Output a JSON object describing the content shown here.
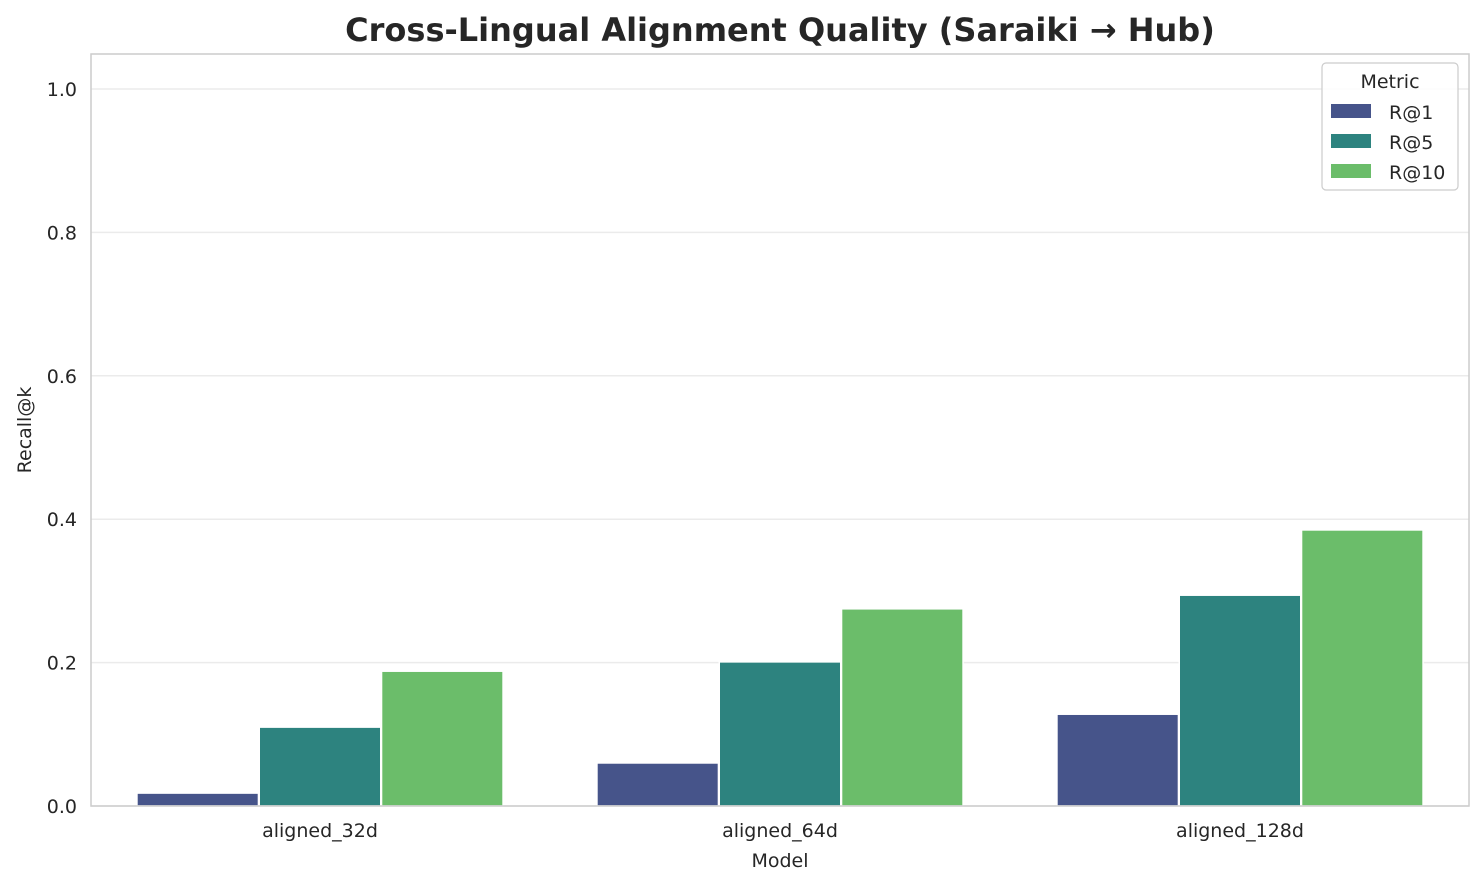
{
  "chart_data": {
    "type": "bar",
    "title": "Cross-Lingual Alignment Quality (Saraiki → Hub)",
    "xlabel": "Model",
    "ylabel": "Recall@k",
    "categories": [
      "aligned_32d",
      "aligned_64d",
      "aligned_128d"
    ],
    "series": [
      {
        "name": "R@1",
        "color": "#46548a",
        "values": [
          0.018,
          0.06,
          0.128
        ]
      },
      {
        "name": "R@5",
        "color": "#2d837f",
        "values": [
          0.11,
          0.201,
          0.294
        ]
      },
      {
        "name": "R@10",
        "color": "#6bbd6a",
        "values": [
          0.188,
          0.275,
          0.385
        ]
      }
    ],
    "ylim": [
      0,
      1.05
    ],
    "yticks": [
      "0.0",
      "0.2",
      "0.4",
      "0.6",
      "0.8",
      "1.0"
    ],
    "grid": true,
    "legend": {
      "title": "Metric",
      "placement": "top-right"
    }
  }
}
